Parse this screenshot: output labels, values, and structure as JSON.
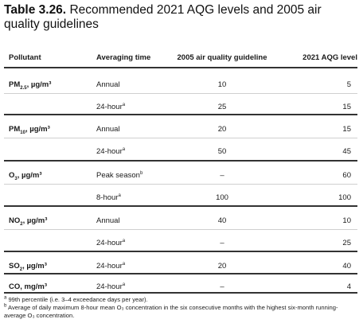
{
  "title": {
    "label": "Table 3.26.",
    "text": "Recommended 2021 AQG levels and 2005 air quality guidelines"
  },
  "columns": [
    "Pollutant",
    "Averaging time",
    "2005 air quality guideline",
    "2021 AQG level"
  ],
  "rows": [
    {
      "pollutant": "PM",
      "sub": "2.5",
      "unit": ", µg/m³",
      "averaging": "Annual",
      "mark": "",
      "g2005": "10",
      "g2021": "5"
    },
    {
      "pollutant": "",
      "sub": "",
      "unit": "",
      "averaging": "24-hour",
      "mark": "a",
      "g2005": "25",
      "g2021": "15"
    },
    {
      "pollutant": "PM",
      "sub": "10",
      "unit": ", µg/m³",
      "averaging": "Annual",
      "mark": "",
      "g2005": "20",
      "g2021": "15"
    },
    {
      "pollutant": "",
      "sub": "",
      "unit": "",
      "averaging": "24-hour",
      "mark": "a",
      "g2005": "50",
      "g2021": "45"
    },
    {
      "pollutant": "O",
      "sub": "3",
      "unit": ", µg/m³",
      "averaging": "Peak season",
      "mark": "b",
      "g2005": "–",
      "g2021": "60"
    },
    {
      "pollutant": "",
      "sub": "",
      "unit": "",
      "averaging": "8-hour",
      "mark": "a",
      "g2005": "100",
      "g2021": "100"
    },
    {
      "pollutant": "NO",
      "sub": "2",
      "unit": ", µg/m³",
      "averaging": "Annual",
      "mark": "",
      "g2005": "40",
      "g2021": "10"
    },
    {
      "pollutant": "",
      "sub": "",
      "unit": "",
      "averaging": "24-hour",
      "mark": "a",
      "g2005": "–",
      "g2021": "25"
    },
    {
      "pollutant": "SO",
      "sub": "2",
      "unit": ", µg/m³",
      "averaging": "24-hour",
      "mark": "a",
      "g2005": "20",
      "g2021": "40"
    },
    {
      "pollutant": "CO",
      "sub": "",
      "unit": ", mg/m³",
      "averaging": "24-hour",
      "mark": "a",
      "g2005": "–",
      "g2021": "4"
    }
  ],
  "footnotes": [
    {
      "mark": "a",
      "text": " 99th percentile (i.e. 3–4 exceedance days per year)."
    },
    {
      "mark": "b",
      "text": " Average of daily maximum 8-hour mean O₃ concentration in the six consecutive months with the highest six-month running-average O₃ concentration."
    }
  ]
}
